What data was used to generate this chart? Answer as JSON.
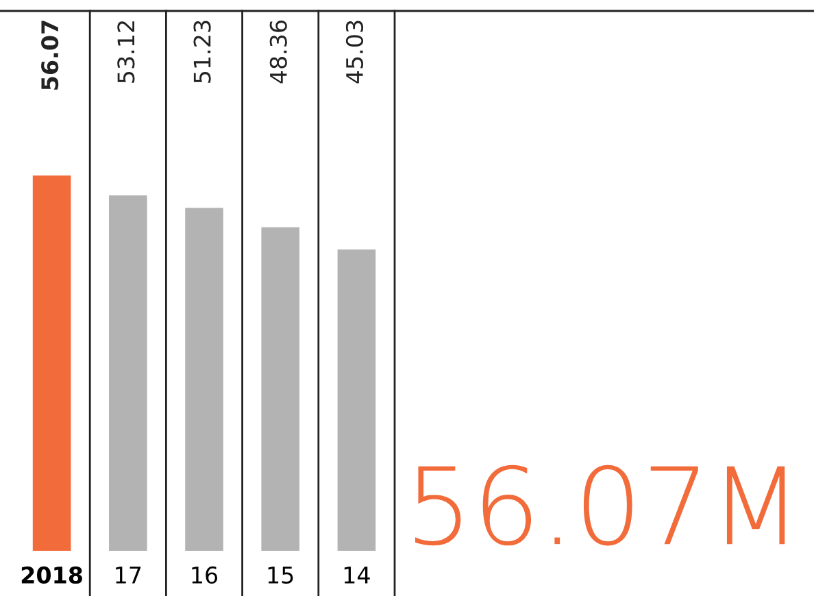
{
  "chart_data": {
    "type": "bar",
    "categories": [
      "2018",
      "17",
      "16",
      "15",
      "14"
    ],
    "values": [
      56.07,
      53.12,
      51.23,
      48.36,
      45.03
    ],
    "colors": [
      "#f26b3a",
      "#b3b3b3",
      "#b3b3b3",
      "#b3b3b3",
      "#b3b3b3"
    ],
    "data_labels": true,
    "annotations": [
      "56.07M"
    ],
    "grid": false,
    "legend": false
  }
}
